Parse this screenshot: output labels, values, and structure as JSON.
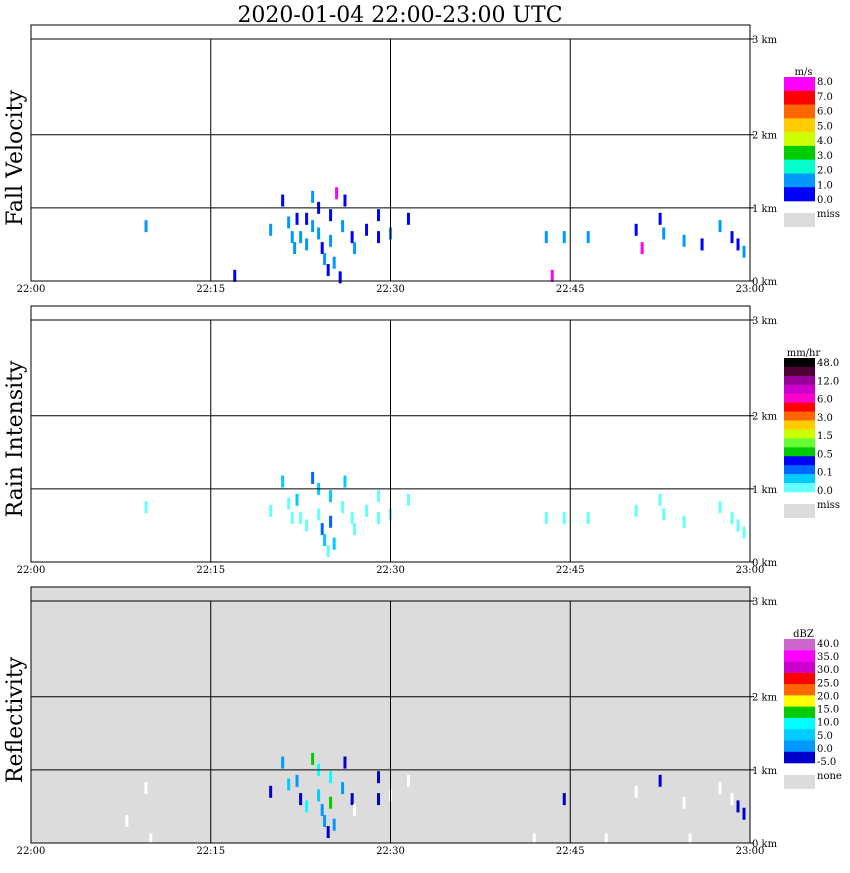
{
  "title": "2020-01-04   22:00-23:00 UTC",
  "x_ticks": [
    "22:00",
    "22:15",
    "22:30",
    "22:45",
    "23:00"
  ],
  "y_ticks": [
    "0 km",
    "1 km",
    "2 km",
    "3 km"
  ],
  "colors": {
    "grid": "#000000",
    "background": "#ffffff",
    "missing": "#dcdcdc",
    "border": "#000000"
  },
  "chart_data": [
    {
      "type": "heatmap",
      "title": "Fall Velocity",
      "ylabel": "Fall Velocity",
      "xlim_minutes": [
        0,
        60
      ],
      "ylim_km": [
        0,
        3.5
      ],
      "background": "#ffffff",
      "legend": {
        "unit": "m/s",
        "levels": [
          "8.0",
          "7.0",
          "6.0",
          "5.0",
          "4.0",
          "3.0",
          "2.0",
          "1.0",
          "0.0"
        ],
        "colors": [
          "#ff00ff",
          "#ff0000",
          "#ff6600",
          "#ffcc00",
          "#ccff00",
          "#00cc00",
          "#00ffcc",
          "#0099ff",
          "#0000ff"
        ],
        "missing_label": "miss"
      },
      "echoes": [
        {
          "t": 9.6,
          "z": 0.75,
          "c": "#0099ff"
        },
        {
          "t": 17.0,
          "z": 0.07,
          "c": "#0000ff"
        },
        {
          "t": 20.0,
          "z": 0.7,
          "c": "#0099ff"
        },
        {
          "t": 21.0,
          "z": 1.1,
          "c": "#0000ff"
        },
        {
          "t": 21.5,
          "z": 0.8,
          "c": "#0099ff"
        },
        {
          "t": 21.8,
          "z": 0.6,
          "c": "#0099ff"
        },
        {
          "t": 22.0,
          "z": 0.45,
          "c": "#0099ff"
        },
        {
          "t": 22.2,
          "z": 0.85,
          "c": "#0000ff"
        },
        {
          "t": 22.5,
          "z": 0.6,
          "c": "#0099ff"
        },
        {
          "t": 23.0,
          "z": 0.5,
          "c": "#0099ff"
        },
        {
          "t": 23.0,
          "z": 0.85,
          "c": "#0000ff"
        },
        {
          "t": 23.5,
          "z": 1.15,
          "c": "#0099ff"
        },
        {
          "t": 23.5,
          "z": 0.75,
          "c": "#0099ff"
        },
        {
          "t": 24.0,
          "z": 1.0,
          "c": "#0000ff"
        },
        {
          "t": 24.0,
          "z": 0.65,
          "c": "#0099ff"
        },
        {
          "t": 24.3,
          "z": 0.45,
          "c": "#0000ff"
        },
        {
          "t": 24.5,
          "z": 0.3,
          "c": "#0099ff"
        },
        {
          "t": 24.8,
          "z": 0.15,
          "c": "#0000ff"
        },
        {
          "t": 25.0,
          "z": 0.9,
          "c": "#0000ff"
        },
        {
          "t": 25.0,
          "z": 0.55,
          "c": "#0099ff"
        },
        {
          "t": 25.3,
          "z": 0.25,
          "c": "#0099ff"
        },
        {
          "t": 25.5,
          "z": 1.2,
          "c": "#ff00ff"
        },
        {
          "t": 25.8,
          "z": 0.05,
          "c": "#0000ff"
        },
        {
          "t": 26.0,
          "z": 0.75,
          "c": "#0099ff"
        },
        {
          "t": 26.2,
          "z": 1.1,
          "c": "#0000ff"
        },
        {
          "t": 26.8,
          "z": 0.6,
          "c": "#0000ff"
        },
        {
          "t": 27.0,
          "z": 0.45,
          "c": "#0099ff"
        },
        {
          "t": 28.0,
          "z": 0.7,
          "c": "#0000ff"
        },
        {
          "t": 29.0,
          "z": 0.6,
          "c": "#0000ff"
        },
        {
          "t": 29.0,
          "z": 0.9,
          "c": "#0000ff"
        },
        {
          "t": 30.0,
          "z": 0.65,
          "c": "#0099ff"
        },
        {
          "t": 31.5,
          "z": 0.85,
          "c": "#0000ff"
        },
        {
          "t": 43.0,
          "z": 0.6,
          "c": "#0099ff"
        },
        {
          "t": 43.5,
          "z": 0.07,
          "c": "#ff00ff"
        },
        {
          "t": 44.5,
          "z": 0.6,
          "c": "#0099ff"
        },
        {
          "t": 46.5,
          "z": 0.6,
          "c": "#0099ff"
        },
        {
          "t": 50.5,
          "z": 0.7,
          "c": "#0000ff"
        },
        {
          "t": 51.0,
          "z": 0.45,
          "c": "#ff00ff"
        },
        {
          "t": 52.5,
          "z": 0.85,
          "c": "#0000ff"
        },
        {
          "t": 52.8,
          "z": 0.65,
          "c": "#0099ff"
        },
        {
          "t": 54.5,
          "z": 0.55,
          "c": "#0099ff"
        },
        {
          "t": 56.0,
          "z": 0.5,
          "c": "#0000ff"
        },
        {
          "t": 57.5,
          "z": 0.75,
          "c": "#0099ff"
        },
        {
          "t": 58.5,
          "z": 0.6,
          "c": "#0000ff"
        },
        {
          "t": 59.0,
          "z": 0.5,
          "c": "#0000ff"
        },
        {
          "t": 59.5,
          "z": 0.4,
          "c": "#0099ff"
        }
      ]
    },
    {
      "type": "heatmap",
      "title": "Rain Intensity",
      "ylabel": "Rain Intensity",
      "xlim_minutes": [
        0,
        60
      ],
      "ylim_km": [
        0,
        3.5
      ],
      "background": "#ffffff",
      "legend": {
        "unit": "mm/hr",
        "levels": [
          "48.0",
          "12.0",
          "6.0",
          "3.0",
          "1.5",
          "0.5",
          "0.1",
          "0.0"
        ],
        "colors": [
          "#000000",
          "#4d0033",
          "#990099",
          "#cc00cc",
          "#ff00cc",
          "#ff0000",
          "#ff6600",
          "#ffcc00",
          "#ccff00",
          "#66ff33",
          "#00cc00",
          "#0000ff",
          "#0066ff",
          "#00ccff",
          "#66ffff"
        ],
        "missing_label": "miss"
      },
      "echoes": [
        {
          "t": 9.6,
          "z": 0.75,
          "c": "#66ffff"
        },
        {
          "t": 20.0,
          "z": 0.7,
          "c": "#66ffff"
        },
        {
          "t": 21.0,
          "z": 1.1,
          "c": "#00ccff"
        },
        {
          "t": 21.5,
          "z": 0.8,
          "c": "#66ffff"
        },
        {
          "t": 21.8,
          "z": 0.6,
          "c": "#66ffff"
        },
        {
          "t": 22.2,
          "z": 0.85,
          "c": "#00ccff"
        },
        {
          "t": 22.5,
          "z": 0.6,
          "c": "#66ffff"
        },
        {
          "t": 23.0,
          "z": 0.5,
          "c": "#66ffff"
        },
        {
          "t": 23.5,
          "z": 1.15,
          "c": "#0066ff"
        },
        {
          "t": 24.0,
          "z": 1.0,
          "c": "#00ccff"
        },
        {
          "t": 24.0,
          "z": 0.65,
          "c": "#66ffff"
        },
        {
          "t": 24.3,
          "z": 0.45,
          "c": "#0066ff"
        },
        {
          "t": 24.5,
          "z": 0.3,
          "c": "#00ccff"
        },
        {
          "t": 24.8,
          "z": 0.15,
          "c": "#66ffff"
        },
        {
          "t": 25.0,
          "z": 0.9,
          "c": "#00ccff"
        },
        {
          "t": 25.0,
          "z": 0.55,
          "c": "#0066ff"
        },
        {
          "t": 25.3,
          "z": 0.25,
          "c": "#00ccff"
        },
        {
          "t": 26.0,
          "z": 0.75,
          "c": "#66ffff"
        },
        {
          "t": 26.2,
          "z": 1.1,
          "c": "#00ccff"
        },
        {
          "t": 26.8,
          "z": 0.6,
          "c": "#66ffff"
        },
        {
          "t": 27.0,
          "z": 0.45,
          "c": "#66ffff"
        },
        {
          "t": 28.0,
          "z": 0.7,
          "c": "#66ffff"
        },
        {
          "t": 29.0,
          "z": 0.6,
          "c": "#66ffff"
        },
        {
          "t": 29.0,
          "z": 0.9,
          "c": "#66ffff"
        },
        {
          "t": 30.0,
          "z": 0.65,
          "c": "#66ffff"
        },
        {
          "t": 31.5,
          "z": 0.85,
          "c": "#66ffff"
        },
        {
          "t": 43.0,
          "z": 0.6,
          "c": "#66ffff"
        },
        {
          "t": 44.5,
          "z": 0.6,
          "c": "#66ffff"
        },
        {
          "t": 46.5,
          "z": 0.6,
          "c": "#66ffff"
        },
        {
          "t": 50.5,
          "z": 0.7,
          "c": "#66ffff"
        },
        {
          "t": 52.5,
          "z": 0.85,
          "c": "#66ffff"
        },
        {
          "t": 52.8,
          "z": 0.65,
          "c": "#66ffff"
        },
        {
          "t": 54.5,
          "z": 0.55,
          "c": "#66ffff"
        },
        {
          "t": 57.5,
          "z": 0.75,
          "c": "#66ffff"
        },
        {
          "t": 58.5,
          "z": 0.6,
          "c": "#66ffff"
        },
        {
          "t": 59.0,
          "z": 0.5,
          "c": "#66ffff"
        },
        {
          "t": 59.5,
          "z": 0.4,
          "c": "#66ffff"
        }
      ]
    },
    {
      "type": "heatmap",
      "title": "Reflectivity",
      "ylabel": "Reflectivity",
      "xlim_minutes": [
        0,
        60
      ],
      "ylim_km": [
        0,
        3.5
      ],
      "background": "#dcdcdc",
      "legend": {
        "unit": "dBZ",
        "levels": [
          "40.0",
          "35.0",
          "30.0",
          "25.0",
          "20.0",
          "15.0",
          "10.0",
          "5.0",
          "0.0",
          "-5.0"
        ],
        "colors": [
          "#cc66cc",
          "#ff00ff",
          "#cc00cc",
          "#ff0000",
          "#ff6600",
          "#ffff00",
          "#00cc00",
          "#00ffff",
          "#00ccff",
          "#0099ff",
          "#0000cc"
        ],
        "missing_label": "none"
      },
      "echoes": [
        {
          "t": 9.6,
          "z": 0.75,
          "c": "#ffffff"
        },
        {
          "t": 8.0,
          "z": 0.3,
          "c": "#ffffff"
        },
        {
          "t": 10.0,
          "z": 0.05,
          "c": "#ffffff"
        },
        {
          "t": 20.0,
          "z": 0.7,
          "c": "#0000cc"
        },
        {
          "t": 21.0,
          "z": 1.1,
          "c": "#0099ff"
        },
        {
          "t": 21.5,
          "z": 0.8,
          "c": "#00ccff"
        },
        {
          "t": 22.2,
          "z": 0.85,
          "c": "#0099ff"
        },
        {
          "t": 22.5,
          "z": 0.6,
          "c": "#0000cc"
        },
        {
          "t": 23.0,
          "z": 0.5,
          "c": "#00ffff"
        },
        {
          "t": 23.5,
          "z": 1.15,
          "c": "#00cc00"
        },
        {
          "t": 24.0,
          "z": 1.0,
          "c": "#00ffff"
        },
        {
          "t": 24.0,
          "z": 0.65,
          "c": "#00ccff"
        },
        {
          "t": 24.3,
          "z": 0.45,
          "c": "#0099ff"
        },
        {
          "t": 24.5,
          "z": 0.3,
          "c": "#0099ff"
        },
        {
          "t": 24.8,
          "z": 0.15,
          "c": "#0000cc"
        },
        {
          "t": 25.0,
          "z": 0.9,
          "c": "#00ffff"
        },
        {
          "t": 25.0,
          "z": 0.55,
          "c": "#00cc00"
        },
        {
          "t": 25.3,
          "z": 0.25,
          "c": "#0099ff"
        },
        {
          "t": 26.0,
          "z": 0.75,
          "c": "#0099ff"
        },
        {
          "t": 26.2,
          "z": 1.1,
          "c": "#0000cc"
        },
        {
          "t": 26.8,
          "z": 0.6,
          "c": "#0000cc"
        },
        {
          "t": 27.0,
          "z": 0.45,
          "c": "#ffffff"
        },
        {
          "t": 29.0,
          "z": 0.6,
          "c": "#0000cc"
        },
        {
          "t": 29.0,
          "z": 0.9,
          "c": "#0000cc"
        },
        {
          "t": 30.0,
          "z": 0.65,
          "c": "#ffffff"
        },
        {
          "t": 31.5,
          "z": 0.85,
          "c": "#ffffff"
        },
        {
          "t": 44.5,
          "z": 0.6,
          "c": "#0000cc"
        },
        {
          "t": 52.5,
          "z": 0.85,
          "c": "#0000cc"
        },
        {
          "t": 50.5,
          "z": 0.7,
          "c": "#ffffff"
        },
        {
          "t": 54.5,
          "z": 0.55,
          "c": "#ffffff"
        },
        {
          "t": 57.5,
          "z": 0.75,
          "c": "#ffffff"
        },
        {
          "t": 58.5,
          "z": 0.6,
          "c": "#ffffff"
        },
        {
          "t": 59.0,
          "z": 0.5,
          "c": "#0000cc"
        },
        {
          "t": 59.5,
          "z": 0.4,
          "c": "#0000cc"
        },
        {
          "t": 42.0,
          "z": 0.05,
          "c": "#ffffff"
        },
        {
          "t": 48.0,
          "z": 0.05,
          "c": "#ffffff"
        },
        {
          "t": 55.0,
          "z": 0.05,
          "c": "#ffffff"
        }
      ]
    }
  ]
}
